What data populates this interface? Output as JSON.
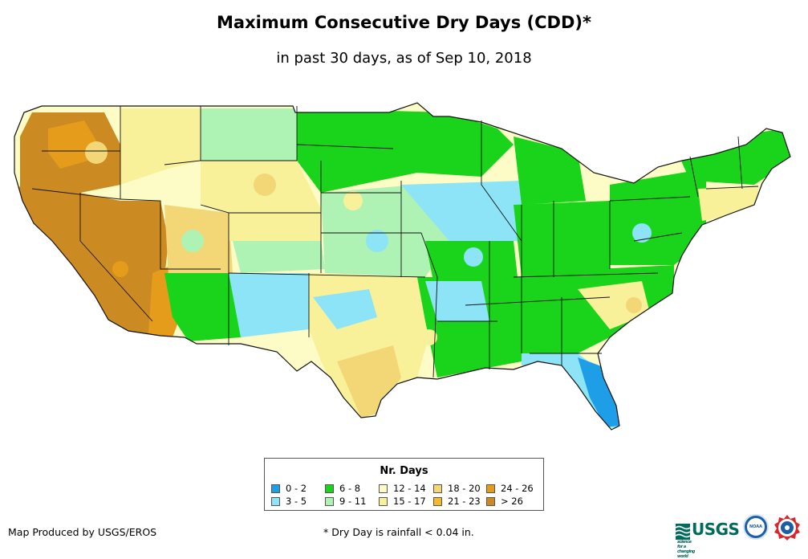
{
  "header": {
    "title": "Maximum Consecutive Dry Days (CDD)*",
    "subtitle": "in past 30 days, as of Sep 10, 2018"
  },
  "legend": {
    "title": "Nr. Days",
    "classes": [
      {
        "label": "0 - 2",
        "color": "#1f9ee8"
      },
      {
        "label": "3 - 5",
        "color": "#8ce4f6"
      },
      {
        "label": "6 - 8",
        "color": "#19d41a"
      },
      {
        "label": "9 - 11",
        "color": "#aef2b4"
      },
      {
        "label": "12 - 14",
        "color": "#fdfcc6"
      },
      {
        "label": "15 - 17",
        "color": "#f9f19a"
      },
      {
        "label": "18 - 20",
        "color": "#f3d777"
      },
      {
        "label": "21 - 23",
        "color": "#f4ba2a"
      },
      {
        "label": "24 - 26",
        "color": "#e59c1a"
      },
      {
        "label": "> 26",
        "color": "#cc8a22"
      }
    ]
  },
  "footer": {
    "credit": "Map Produced by USGS/EROS",
    "footnote": "* Dry Day is rainfall < 0.04 in."
  },
  "logos": {
    "usgs_label": "USGS",
    "usgs_tagline": "science for a changing world",
    "noaa_label": "NOAA"
  }
}
